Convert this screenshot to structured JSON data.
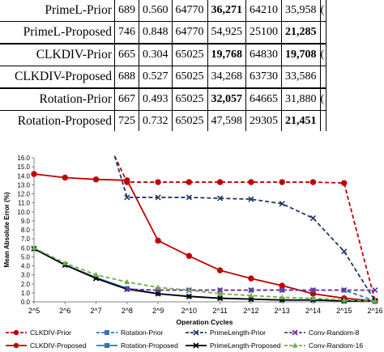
{
  "table": {
    "rows": [
      {
        "name": "PrimeL-Prior",
        "cells": [
          "689",
          "0.560",
          "64770",
          "36,271",
          "64210",
          "35,958"
        ],
        "bold": [
          false,
          false,
          false,
          true,
          false,
          false
        ],
        "trailing": "("
      },
      {
        "name": "PrimeL-Proposed",
        "cells": [
          "746",
          "0.848",
          "64770",
          "54,925",
          "25100",
          "21,285"
        ],
        "bold": [
          false,
          false,
          false,
          false,
          false,
          true
        ],
        "trailing": ""
      },
      {
        "name": "CLKDIV-Prior",
        "cells": [
          "665",
          "0.304",
          "65025",
          "19,768",
          "64830",
          "19,708"
        ],
        "bold": [
          false,
          false,
          false,
          true,
          false,
          true
        ],
        "trailing": "("
      },
      {
        "name": "CLKDIV-Proposed",
        "cells": [
          "688",
          "0.527",
          "65025",
          "34,268",
          "63730",
          "33,586"
        ],
        "bold": [
          false,
          false,
          false,
          false,
          false,
          false
        ],
        "trailing": ""
      },
      {
        "name": "Rotation-Prior",
        "cells": [
          "667",
          "0.493",
          "65025",
          "32,057",
          "64665",
          "31,880"
        ],
        "bold": [
          false,
          false,
          false,
          true,
          false,
          false
        ],
        "trailing": "("
      },
      {
        "name": "Rotation-Proposed",
        "cells": [
          "725",
          "0.732",
          "65025",
          "47,598",
          "29305",
          "21,451"
        ],
        "bold": [
          false,
          false,
          false,
          false,
          false,
          true
        ],
        "trailing": ""
      }
    ]
  },
  "chart_data": {
    "type": "line",
    "xlabel": "Operation Cycles",
    "ylabel": "Mean Absolute Error (%)",
    "categories": [
      "2^5",
      "2^6",
      "2^7",
      "2^8",
      "2^9",
      "2^10",
      "2^11",
      "2^12",
      "2^13",
      "2^14",
      "2^15",
      "2^16"
    ],
    "ylim": [
      0,
      16
    ],
    "yticks": [
      "0.0",
      "1.0",
      "2.0",
      "3.0",
      "4.0",
      "5.0",
      "6.0",
      "7.0",
      "8.0",
      "9.0",
      "10.0",
      "11.0",
      "12.0",
      "13.0",
      "14.0",
      "15.0",
      "16.0"
    ],
    "grid": false,
    "legend_position": "bottom",
    "series": [
      {
        "name": "CLKDIV-Prior",
        "color": "#c00000",
        "dash": "dashed",
        "marker": "circle",
        "values": [
          null,
          null,
          null,
          13.3,
          13.3,
          13.3,
          13.3,
          13.3,
          13.3,
          13.3,
          13.2,
          0.1
        ],
        "lead_in": [
          2.6,
          16.2
        ]
      },
      {
        "name": "CLKDIV-Proposed",
        "color": "#c00000",
        "dash": "solid",
        "marker": "circle",
        "values": [
          14.2,
          13.8,
          13.6,
          13.5,
          6.8,
          5.1,
          3.5,
          2.6,
          1.8,
          0.9,
          0.4,
          0.1
        ]
      },
      {
        "name": "Rotation-Prior",
        "color": "#2e75b6",
        "dash": "dashed",
        "marker": "square",
        "values": [
          null,
          null,
          null,
          1.4,
          1.3,
          1.3,
          1.3,
          1.3,
          1.3,
          1.3,
          1.3,
          0.1
        ]
      },
      {
        "name": "Rotation-Proposed",
        "color": "#2e75b6",
        "dash": "solid",
        "marker": "square",
        "values": [
          5.9,
          4.1,
          2.7,
          1.5,
          0.9,
          0.6,
          0.4,
          0.3,
          0.2,
          0.2,
          0.1,
          0.1
        ]
      },
      {
        "name": "PrimeLength-Prior",
        "color": "#1f3864",
        "dash": "dashed",
        "marker": "x",
        "values": [
          null,
          null,
          null,
          11.6,
          11.6,
          11.6,
          11.5,
          11.4,
          10.9,
          9.3,
          5.6,
          0.1
        ],
        "lead_in": [
          2.6,
          16.2
        ]
      },
      {
        "name": "PrimeLength-Proposed",
        "color": "#000000",
        "dash": "solid",
        "marker": "x",
        "values": [
          5.9,
          4.1,
          2.6,
          1.4,
          0.9,
          0.6,
          0.4,
          0.3,
          0.2,
          0.2,
          0.1,
          0.1
        ]
      },
      {
        "name": "Conv-Random-8",
        "color": "#7030a0",
        "dash": "dashed",
        "marker": "x",
        "values": [
          null,
          null,
          null,
          1.4,
          1.3,
          1.3,
          1.3,
          1.3,
          1.3,
          1.3,
          1.3,
          1.3
        ]
      },
      {
        "name": "Conv-Random-16",
        "color": "#70ad47",
        "dash": "dashed",
        "marker": "triangle",
        "values": [
          6.0,
          4.3,
          3.0,
          2.2,
          1.6,
          1.3,
          0.9,
          0.7,
          0.5,
          0.4,
          0.2,
          0.1
        ]
      }
    ]
  }
}
